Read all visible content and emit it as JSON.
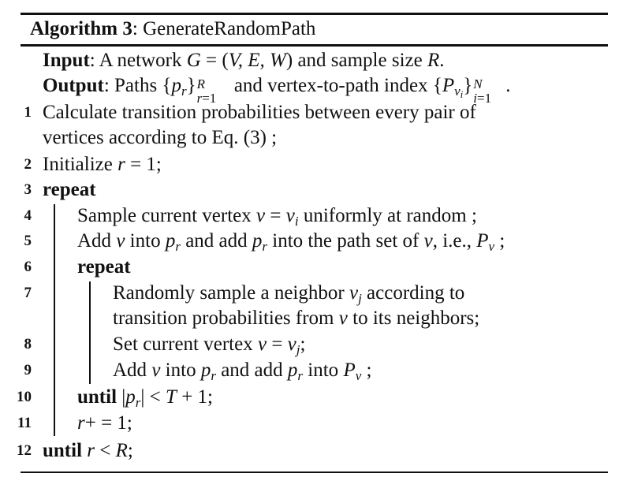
{
  "algorithm": {
    "label": "Algorithm 3",
    "name": "GenerateRandomPath"
  },
  "input": {
    "keyword": "Input",
    "text": "A network G = (V, E, W) and sample size R."
  },
  "output": {
    "keyword": "Output",
    "text": "Paths {p_r}_{r=1}^R and vertex-to-path index {P_{v_i}}_{i=1}^N."
  },
  "lines": [
    {
      "num": "1",
      "text": "Calculate transition probabilities between every pair of vertices according to Eq. (3) ;"
    },
    {
      "num": "2",
      "text": "Initialize r = 1;"
    },
    {
      "num": "3",
      "text": "repeat"
    },
    {
      "num": "4",
      "text": "Sample current vertex v = v_i uniformly at random ;"
    },
    {
      "num": "5",
      "text": "Add v into p_r and add p_r into the path set of v, i.e., P_v ;"
    },
    {
      "num": "6",
      "text": "repeat"
    },
    {
      "num": "7",
      "text": "Randomly sample a neighbor v_j according to transition probabilities from v to its neighbors;"
    },
    {
      "num": "8",
      "text": "Set current vertex v = v_j;"
    },
    {
      "num": "9",
      "text": "Add v into p_r and add p_r into P_v ;"
    },
    {
      "num": "10",
      "text": "until |p_r| < T + 1;"
    },
    {
      "num": "11",
      "text": "r+ = 1;"
    },
    {
      "num": "12",
      "text": "until r < R;"
    }
  ],
  "fragments": {
    "input_t1": "A network ",
    "input_t2": " and sample size ",
    "output_t1": "Paths ",
    "output_t2": " and vertex-to-path index ",
    "l1a": "Calculate transition probabilities between every pair of",
    "l1b": "vertices according to Eq. (3) ;",
    "l2": "Initialize ",
    "kw_repeat": "repeat",
    "kw_until": "until",
    "l4a": "Sample current vertex ",
    "l4b": " uniformly at random ;",
    "l5a": "Add ",
    "l5b": " into ",
    "l5c": " and add ",
    "l5d": " into the path set of ",
    "l5e": ", i.e., ",
    "l7a": "Randomly sample a neighbor ",
    "l7b": " according to",
    "l7c": "transition probabilities from ",
    "l7d": " to its neighbors;",
    "l8": "Set current vertex ",
    "l9a": "Add ",
    "l9b": " into ",
    "l9c": " and add ",
    "l9d": " into "
  }
}
